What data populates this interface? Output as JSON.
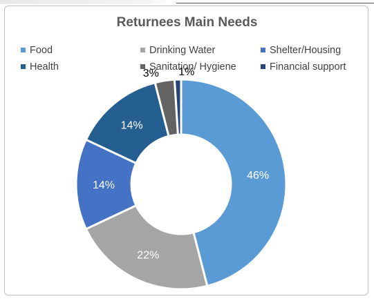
{
  "chart_data": {
    "type": "pie",
    "donut": true,
    "title": "Returnees Main Needs",
    "legend_position": "top",
    "categories": [
      "Food",
      "Drinking Water",
      "Shelter/Housing",
      "Health",
      "Sanitation/ Hygiene",
      "Financial support"
    ],
    "values": [
      46,
      22,
      14,
      14,
      3,
      1
    ],
    "value_labels": [
      "46%",
      "22%",
      "14%",
      "14%",
      "3%",
      "1%"
    ],
    "colors": [
      "#5b9bd5",
      "#a5a5a5",
      "#4472c4",
      "#255e91",
      "#636363",
      "#264478"
    ],
    "label_colors": [
      "#ffffff",
      "#ffffff",
      "#ffffff",
      "#ffffff",
      "#000000",
      "#000000"
    ]
  }
}
